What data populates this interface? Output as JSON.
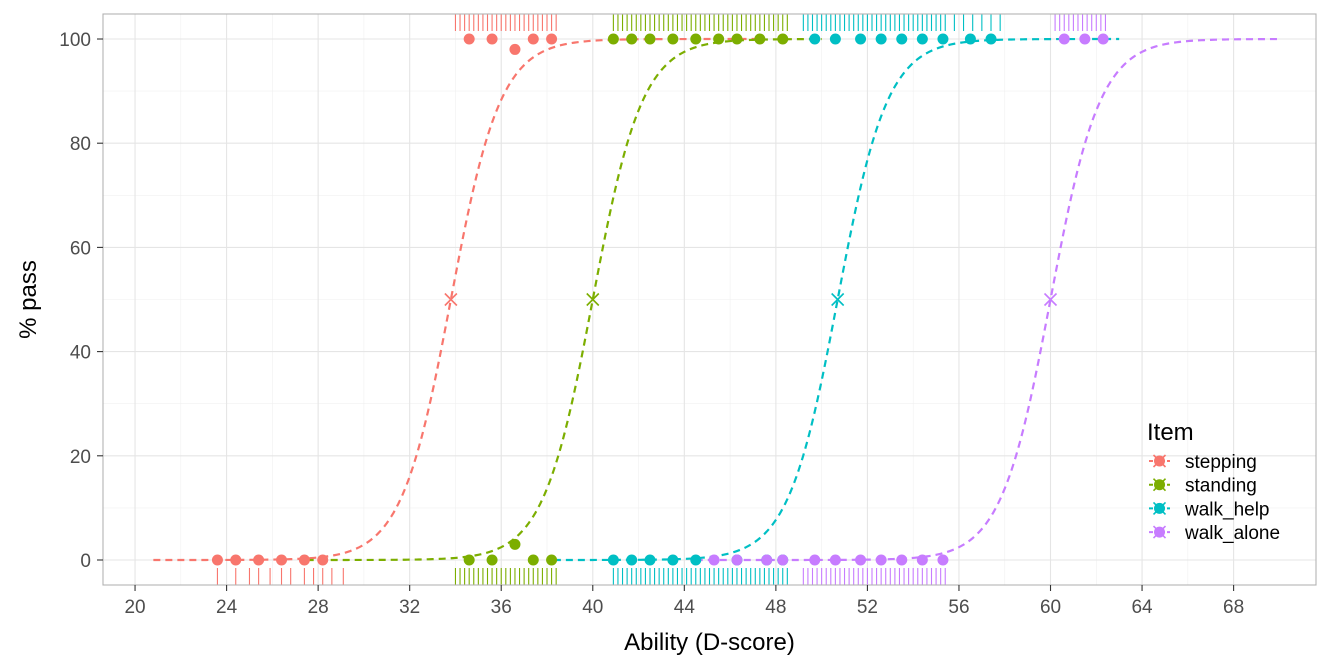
{
  "chart_data": {
    "type": "scatter",
    "xlabel": "Ability (D-score)",
    "ylabel": "% pass",
    "xlim": [
      18.6,
      71.6
    ],
    "ylim": [
      -4.8,
      104.8
    ],
    "x_ticks": [
      20,
      24,
      28,
      32,
      36,
      40,
      44,
      48,
      52,
      56,
      60,
      64,
      68
    ],
    "y_ticks": [
      0,
      20,
      40,
      60,
      80,
      100
    ],
    "grid": true,
    "legend": {
      "title": "Item",
      "placement": "bottom-right"
    },
    "series": [
      {
        "name": "stepping",
        "color": "#F8766D",
        "midpoint": [
          33.8,
          50
        ],
        "curve_range": [
          20.8,
          47.5
        ],
        "points": [
          [
            23.6,
            0
          ],
          [
            24.4,
            0
          ],
          [
            25.4,
            0
          ],
          [
            26.4,
            0
          ],
          [
            27.4,
            0
          ],
          [
            28.2,
            0
          ],
          [
            34.6,
            100
          ],
          [
            35.6,
            100
          ],
          [
            36.6,
            98
          ],
          [
            37.4,
            100
          ],
          [
            38.2,
            100
          ]
        ],
        "rug_fail": [
          23.6,
          24.4,
          25.0,
          25.4,
          25.9,
          26.4,
          26.8,
          27.4,
          27.8,
          28.2,
          28.6,
          29.1
        ],
        "rug_pass": [
          34.0,
          34.2,
          34.4,
          34.6,
          34.8,
          35.0,
          35.2,
          35.4,
          35.6,
          35.8,
          36.0,
          36.2,
          36.4,
          36.6,
          36.8,
          37.0,
          37.2,
          37.4,
          37.6,
          37.8,
          38.0,
          38.2,
          38.4
        ]
      },
      {
        "name": "standing",
        "color": "#7CAE00",
        "midpoint": [
          40.0,
          50
        ],
        "curve_range": [
          27.5,
          50.0
        ],
        "points": [
          [
            34.6,
            0
          ],
          [
            35.6,
            0
          ],
          [
            36.6,
            3
          ],
          [
            37.4,
            0
          ],
          [
            38.2,
            0
          ],
          [
            40.9,
            100
          ],
          [
            41.7,
            100
          ],
          [
            42.5,
            100
          ],
          [
            43.5,
            100
          ],
          [
            44.5,
            100
          ],
          [
            45.5,
            100
          ],
          [
            46.3,
            100
          ],
          [
            47.3,
            100
          ],
          [
            48.3,
            100
          ]
        ],
        "rug_fail": [
          34.0,
          34.2,
          34.4,
          34.6,
          34.8,
          35.0,
          35.2,
          35.4,
          35.6,
          35.8,
          36.0,
          36.2,
          36.4,
          36.6,
          36.8,
          37.0,
          37.2,
          37.4,
          37.6,
          37.8,
          38.0,
          38.2,
          38.4
        ],
        "rug_pass": [
          40.9,
          41.1,
          41.3,
          41.5,
          41.7,
          41.9,
          42.1,
          42.3,
          42.5,
          42.7,
          42.9,
          43.1,
          43.3,
          43.5,
          43.7,
          43.9,
          44.1,
          44.3,
          44.5,
          44.7,
          44.9,
          45.1,
          45.3,
          45.5,
          45.7,
          45.9,
          46.1,
          46.3,
          46.5,
          46.7,
          46.9,
          47.1,
          47.3,
          47.5,
          47.7,
          47.9,
          48.1,
          48.3,
          48.5
        ]
      },
      {
        "name": "walk_help",
        "color": "#00BFC4",
        "midpoint": [
          50.7,
          50
        ],
        "curve_range": [
          38.3,
          63.0
        ],
        "points": [
          [
            40.9,
            0
          ],
          [
            41.7,
            0
          ],
          [
            42.5,
            0
          ],
          [
            43.5,
            0
          ],
          [
            44.5,
            0
          ],
          [
            46.3,
            0
          ],
          [
            47.6,
            0
          ],
          [
            48.3,
            0
          ],
          [
            49.7,
            100
          ],
          [
            50.6,
            100
          ],
          [
            51.7,
            100
          ],
          [
            52.6,
            100
          ],
          [
            53.5,
            100
          ],
          [
            54.4,
            100
          ],
          [
            55.3,
            100
          ],
          [
            56.5,
            100
          ],
          [
            57.4,
            100
          ]
        ],
        "rug_fail": [
          40.9,
          41.1,
          41.3,
          41.5,
          41.7,
          41.9,
          42.1,
          42.3,
          42.5,
          42.7,
          42.9,
          43.1,
          43.3,
          43.5,
          43.7,
          43.9,
          44.1,
          44.3,
          44.5,
          44.7,
          44.9,
          45.1,
          45.3,
          45.5,
          45.7,
          45.9,
          46.1,
          46.3,
          46.5,
          46.7,
          46.9,
          47.1,
          47.3,
          47.5,
          47.7,
          47.9,
          48.1,
          48.3,
          48.5
        ],
        "rug_pass": [
          49.2,
          49.4,
          49.6,
          49.8,
          50.0,
          50.2,
          50.4,
          50.6,
          50.8,
          51.0,
          51.2,
          51.4,
          51.6,
          51.8,
          52.0,
          52.2,
          52.4,
          52.6,
          52.8,
          53.0,
          53.2,
          53.4,
          53.6,
          53.8,
          54.0,
          54.2,
          54.4,
          54.6,
          54.8,
          55.0,
          55.2,
          55.4,
          55.8,
          56.2,
          56.6,
          57.0,
          57.4,
          57.8
        ]
      },
      {
        "name": "walk_alone",
        "color": "#C77CFF",
        "midpoint": [
          60.0,
          50
        ],
        "curve_range": [
          44.5,
          70.0
        ],
        "points": [
          [
            45.3,
            0
          ],
          [
            46.3,
            0
          ],
          [
            47.6,
            0
          ],
          [
            48.3,
            0
          ],
          [
            49.7,
            0
          ],
          [
            50.6,
            0
          ],
          [
            51.7,
            0
          ],
          [
            52.6,
            0
          ],
          [
            53.5,
            0
          ],
          [
            54.4,
            0
          ],
          [
            55.3,
            0
          ],
          [
            60.6,
            100
          ],
          [
            61.5,
            100
          ],
          [
            62.3,
            100
          ]
        ],
        "rug_fail": [
          49.2,
          49.4,
          49.6,
          49.8,
          50.0,
          50.2,
          50.4,
          50.6,
          50.8,
          51.0,
          51.2,
          51.4,
          51.6,
          51.8,
          52.0,
          52.2,
          52.4,
          52.6,
          52.8,
          53.0,
          53.2,
          53.4,
          53.6,
          53.8,
          54.0,
          54.2,
          54.4,
          54.6,
          54.8,
          55.0,
          55.2,
          55.4
        ],
        "rug_pass": [
          60.2,
          60.4,
          60.6,
          60.8,
          61.0,
          61.2,
          61.4,
          61.6,
          61.8,
          62.0,
          62.2,
          62.4
        ]
      }
    ]
  }
}
